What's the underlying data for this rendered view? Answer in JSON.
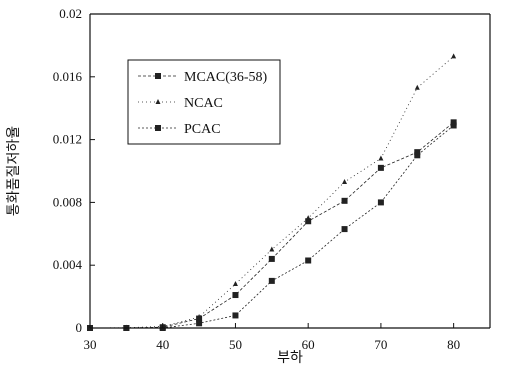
{
  "chart_data": {
    "type": "line",
    "title": "",
    "xlabel": "부하",
    "ylabel": "통화품질저하율",
    "xlim": [
      30,
      85
    ],
    "ylim": [
      0,
      0.02
    ],
    "xticks": [
      "30",
      "40",
      "50",
      "60",
      "70",
      "80"
    ],
    "yticks": [
      "0",
      "0.004",
      "0.008",
      "0.012",
      "0.016",
      "0.02"
    ],
    "legend_position": "top-left",
    "grid": false,
    "series": [
      {
        "name": "MCAC(36-58)",
        "marker": "square",
        "color": "#222222",
        "x": [
          30,
          35,
          40,
          45,
          50,
          55,
          60,
          65,
          70,
          75,
          80
        ],
        "y": [
          0,
          0,
          5e-05,
          0.0006,
          0.0021,
          0.0044,
          0.0068,
          0.0081,
          0.0102,
          0.0112,
          0.0131
        ]
      },
      {
        "name": "NCAC",
        "marker": "triangle",
        "color": "#222222",
        "x": [
          30,
          35,
          40,
          45,
          50,
          55,
          60,
          65,
          70,
          75,
          80
        ],
        "y": [
          0,
          2e-05,
          0.0001,
          0.0007,
          0.0028,
          0.005,
          0.007,
          0.0093,
          0.0108,
          0.0153,
          0.0173
        ]
      },
      {
        "name": "PCAC",
        "marker": "square",
        "color": "#222222",
        "x": [
          30,
          35,
          40,
          45,
          50,
          55,
          60,
          65,
          70,
          75,
          80
        ],
        "y": [
          0,
          0,
          0,
          0.0003,
          0.0008,
          0.003,
          0.0043,
          0.0063,
          0.008,
          0.011,
          0.0129
        ]
      }
    ]
  }
}
